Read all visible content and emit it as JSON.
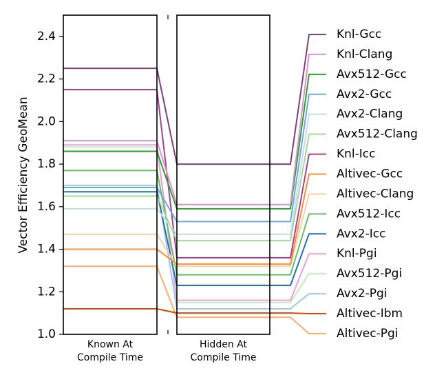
{
  "chart_data": {
    "type": "line",
    "ylabel": "Vector Efficiency GeoMean",
    "ylim": [
      1.0,
      2.5
    ],
    "yticks": [
      "1.0",
      "1.2",
      "1.4",
      "1.6",
      "1.8",
      "2.0",
      "2.2",
      "2.4"
    ],
    "categories": [
      {
        "line1": "Known At",
        "line2": "Compile Time"
      },
      {
        "line1": "Hidden At",
        "line2": "Compile Time"
      }
    ],
    "series": [
      {
        "name": "Knl-Gcc",
        "color": "#7b3f7b",
        "known": 2.25,
        "hidden": 1.8
      },
      {
        "name": "Knl-Clang",
        "color": "#e08fd0",
        "known": 1.91,
        "hidden": 1.61
      },
      {
        "name": "Avx512-Gcc",
        "color": "#2ca02c",
        "known": 1.86,
        "hidden": 1.59
      },
      {
        "name": "Avx2-Gcc",
        "color": "#6fa8d6",
        "known": 1.69,
        "hidden": 1.53
      },
      {
        "name": "Avx2-Clang",
        "color": "#c6dbef",
        "known": 1.59,
        "hidden": 1.47
      },
      {
        "name": "Avx512-Clang",
        "color": "#a1d99b",
        "known": 1.65,
        "hidden": 1.44
      },
      {
        "name": "Knl-Icc",
        "color": "#a1418f",
        "known": 2.15,
        "hidden": 1.36
      },
      {
        "name": "Altivec-Gcc",
        "color": "#fd8d3c",
        "known": 1.4,
        "hidden": 1.33
      },
      {
        "name": "Altivec-Clang",
        "color": "#fdd0a2",
        "known": 1.47,
        "hidden": 1.32
      },
      {
        "name": "Avx512-Icc",
        "color": "#66bd63",
        "known": 1.77,
        "hidden": 1.28
      },
      {
        "name": "Avx2-Icc",
        "color": "#2171b5",
        "known": 1.67,
        "hidden": 1.23
      },
      {
        "name": "Knl-Pgi",
        "color": "#e6a1dd",
        "known": 1.89,
        "hidden": 1.16
      },
      {
        "name": "Avx512-Pgi",
        "color": "#c7e9c0",
        "known": 1.88,
        "hidden": 1.15
      },
      {
        "name": "Avx2-Pgi",
        "color": "#9ecae1",
        "known": 1.7,
        "hidden": 1.12
      },
      {
        "name": "Altivec-Ibm",
        "color": "#d94801",
        "known": 1.12,
        "hidden": 1.1
      },
      {
        "name": "Altivec-Pgi",
        "color": "#fdae6b",
        "known": 1.32,
        "hidden": 1.08
      }
    ]
  }
}
